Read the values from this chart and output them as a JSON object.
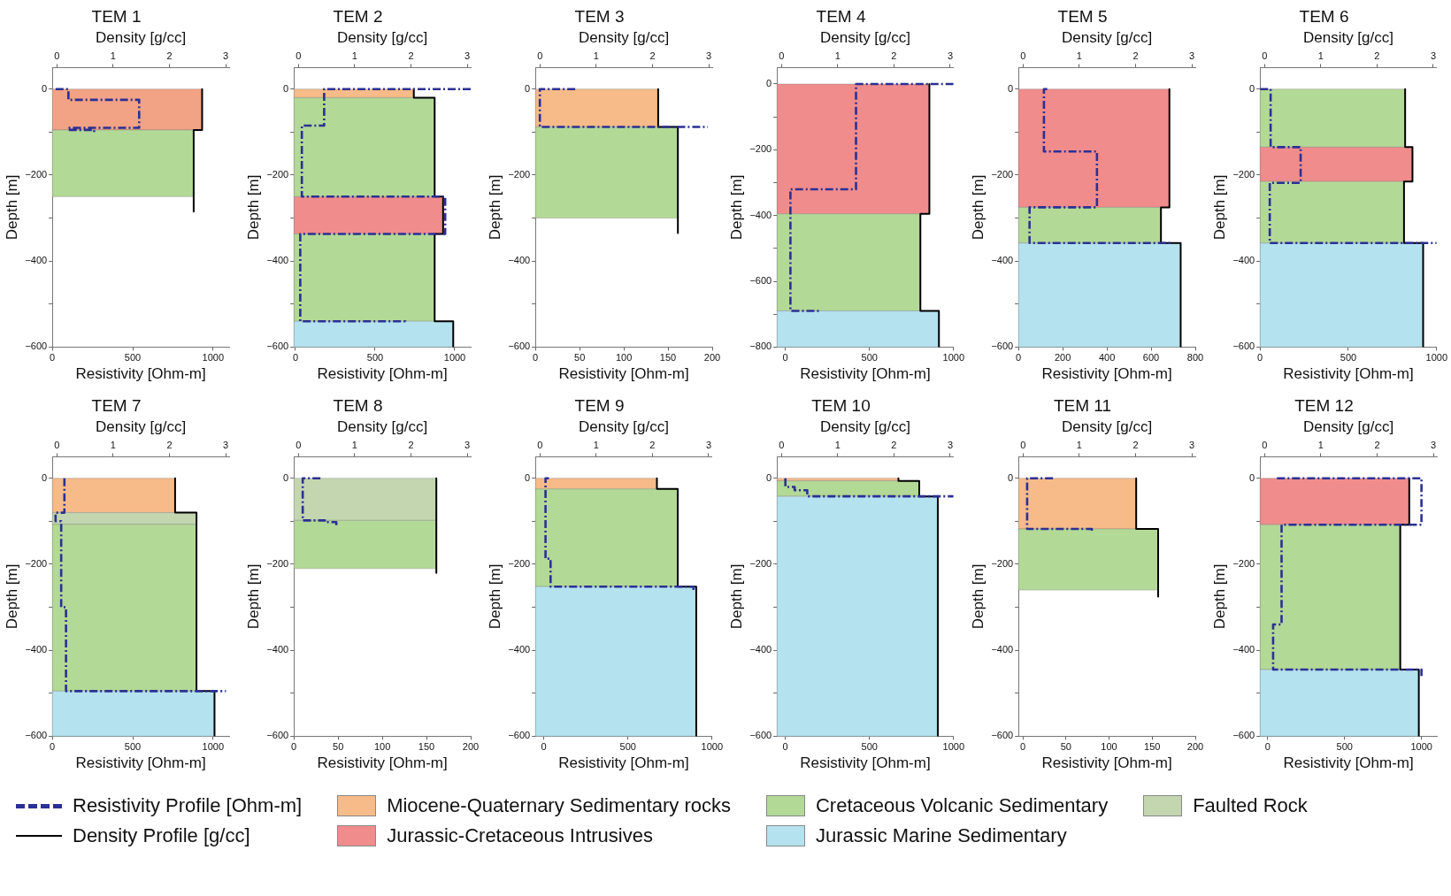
{
  "chart_data": [
    {
      "type": "line",
      "title": "TEM 1",
      "xlabel": "Resistivity [Ohm-m]",
      "x2label": "Density [g/cc]",
      "ylabel": "Depth [m]",
      "xlim": [
        0,
        1100
      ],
      "xticks": [
        0,
        500,
        1000
      ],
      "x2lim": [
        -0.08,
        3.06
      ],
      "x2ticks": [
        0,
        1,
        2,
        3
      ],
      "ylim": [
        -600,
        50
      ],
      "yticks": [
        -600,
        {
          "value": -500,
          "label": null
        },
        -400,
        {
          "value": -300,
          "label": null
        },
        -200,
        {
          "value": -100,
          "label": null
        },
        0
      ],
      "legend": "bottom",
      "series": [
        {
          "name": "Resistivity Profile [Ohm-m]",
          "type": "line",
          "line_style": "dashed",
          "color": "#2b3094",
          "x": [
            20,
            100,
            100,
            540,
            540,
            100,
            100,
            260,
            260
          ],
          "values": [
            0,
            0,
            -25,
            -25,
            -90,
            -90,
            -95,
            -95,
            -105
          ]
        },
        {
          "name": "Density Profile [g/cc]",
          "type": "line",
          "axis": "x2",
          "color": "#000000",
          "x": [
            2.58,
            2.58,
            2.43,
            2.43
          ],
          "values": [
            0,
            -95,
            -95,
            -285
          ]
        }
      ],
      "bands": [
        {
          "axis": "y",
          "from": 0,
          "to": -95,
          "color": "#f2a285"
        },
        {
          "axis": "y",
          "from": -95,
          "to": -250,
          "color": "#b2d996"
        }
      ]
    },
    {
      "type": "line",
      "title": "TEM 2",
      "xlabel": "Resistivity [Ohm-m]",
      "x2label": "Density [g/cc]",
      "ylabel": "Depth [m]",
      "xlim": [
        -10,
        1100
      ],
      "xticks": [
        0,
        500,
        1000
      ],
      "x2lim": [
        -0.08,
        3.06
      ],
      "x2ticks": [
        0,
        1,
        2,
        3
      ],
      "ylim": [
        -600,
        50
      ],
      "yticks": [
        -600,
        {
          "value": -500,
          "label": null
        },
        -400,
        {
          "value": -300,
          "label": null
        },
        -200,
        {
          "value": -100,
          "label": null
        },
        0
      ],
      "legend": "bottom",
      "series": [
        {
          "type": "line",
          "line_style": "dashed",
          "color": "#2b3094",
          "x": [
            1100,
            180,
            180,
            40,
            40,
            940,
            940,
            30,
            30,
            690,
            690
          ],
          "values": [
            0,
            0,
            -85,
            -85,
            -250,
            -250,
            -337,
            -337,
            -540,
            -540,
            -545
          ]
        },
        {
          "type": "line",
          "axis": "x2",
          "color": "#000000",
          "x": [
            2.05,
            2.05,
            2.42,
            2.42,
            2.57,
            2.57,
            2.42,
            2.42,
            2.75,
            2.75
          ],
          "values": [
            0,
            -20,
            -20,
            -250,
            -250,
            -337,
            -337,
            -540,
            -540,
            -600
          ]
        }
      ],
      "bands": [
        {
          "axis": "y",
          "from": 0,
          "to": -20,
          "color": "#f6bb88",
          "label": "Miocene-Quaternary Sedimentary rocks"
        },
        {
          "axis": "y",
          "from": -250,
          "to": -337,
          "color": "#f08c8c",
          "label": "Jurassic-Cretaceous Intrusives"
        },
        {
          "axis": "y",
          "from": -20,
          "to": -250,
          "color": "#b2d996",
          "label": "Cretaceous Volcanic Sedimentary"
        },
        {
          "axis": "y",
          "from": -337,
          "to": -540,
          "color": "#b2d996"
        },
        {
          "axis": "y",
          "from": -540,
          "to": -600,
          "color": "#b4e2ee",
          "label": "Jurassic Marine Sedimentary"
        }
      ]
    },
    {
      "type": "line",
      "title": "TEM 3",
      "xlabel": "Resistivity [Ohm-m]",
      "x2label": "Density [g/cc]",
      "ylabel": "Depth [m]",
      "xlim": [
        0,
        200
      ],
      "xticks": [
        0,
        50,
        100,
        150,
        200
      ],
      "x2lim": [
        -0.08,
        3.06
      ],
      "x2ticks": [
        0,
        1,
        2,
        3
      ],
      "ylim": [
        -600,
        50
      ],
      "yticks": [
        -600,
        {
          "value": -500,
          "label": null
        },
        -400,
        {
          "value": -300,
          "label": null
        },
        -200,
        {
          "value": -100,
          "label": null
        },
        0
      ],
      "series": [
        {
          "type": "line",
          "line_style": "dashed",
          "color": "#2b3094",
          "x": [
            45,
            5,
            5,
            195
          ],
          "values": [
            0,
            0,
            -88,
            -88
          ]
        },
        {
          "type": "line",
          "axis": "x2",
          "color": "#000000",
          "x": [
            2.1,
            2.1,
            2.45,
            2.45
          ],
          "values": [
            0,
            -88,
            -88,
            -335
          ]
        }
      ],
      "bands": [
        {
          "axis": "y",
          "from": 0,
          "to": -88,
          "color": "#f6bb88"
        },
        {
          "axis": "y",
          "from": -88,
          "to": -300,
          "color": "#b2d996"
        }
      ]
    },
    {
      "type": "line",
      "title": "TEM 4",
      "xlabel": "Resistivity [Ohm-m]",
      "x2label": "Density [g/cc]",
      "ylabel": "Depth [m]",
      "xlim": [
        -50,
        1000
      ],
      "xticks": [
        0,
        500,
        1000
      ],
      "x2lim": [
        -0.08,
        3.06
      ],
      "x2ticks": [
        0,
        1,
        2,
        3
      ],
      "ylim": [
        -800,
        50
      ],
      "yticks": [
        -800,
        {
          "value": -700,
          "label": null
        },
        -600,
        {
          "value": -500,
          "label": null
        },
        -400,
        {
          "value": -300,
          "label": null
        },
        -200,
        {
          "value": -100,
          "label": null
        },
        0
      ],
      "series": [
        {
          "type": "line",
          "line_style": "dashed",
          "color": "#2b3094",
          "x": [
            1000,
            420,
            420,
            30,
            30,
            200
          ],
          "values": [
            0,
            0,
            -320,
            -320,
            -690,
            -690
          ]
        },
        {
          "type": "line",
          "axis": "x2",
          "color": "#000000",
          "x": [
            2.63,
            2.63,
            2.47,
            2.47,
            2.8,
            2.8
          ],
          "values": [
            0,
            -395,
            -395,
            -690,
            -690,
            -800
          ]
        }
      ],
      "bands": [
        {
          "axis": "y",
          "from": 0,
          "to": -395,
          "color": "#f08c8c"
        },
        {
          "axis": "y",
          "from": -395,
          "to": -690,
          "color": "#b2d996"
        },
        {
          "axis": "y",
          "from": -690,
          "to": -800,
          "color": "#b4e2ee"
        }
      ]
    },
    {
      "type": "line",
      "title": "TEM 5",
      "xlabel": "Resistivity [Ohm-m]",
      "x2label": "Density [g/cc]",
      "ylabel": "Depth [m]",
      "xlim": [
        0,
        800
      ],
      "xticks": [
        0,
        200,
        400,
        600,
        800
      ],
      "x2lim": [
        -0.08,
        3.06
      ],
      "x2ticks": [
        0,
        1,
        2,
        3
      ],
      "ylim": [
        -600,
        50
      ],
      "yticks": [
        -600,
        {
          "value": -500,
          "label": null
        },
        -400,
        {
          "value": -300,
          "label": null
        },
        -200,
        {
          "value": -100,
          "label": null
        },
        0
      ],
      "series": [
        {
          "type": "line",
          "line_style": "dashed",
          "color": "#2b3094",
          "x": [
            130,
            115,
            115,
            355,
            355,
            50,
            50,
            690
          ],
          "values": [
            0,
            0,
            -145,
            -145,
            -275,
            -275,
            -358,
            -358
          ]
        },
        {
          "type": "line",
          "axis": "x2",
          "color": "#000000",
          "x": [
            2.6,
            2.6,
            2.45,
            2.45,
            2.8,
            2.8
          ],
          "values": [
            0,
            -275,
            -275,
            -358,
            -358,
            -600
          ]
        }
      ],
      "bands": [
        {
          "axis": "y",
          "from": 0,
          "to": -275,
          "color": "#f08c8c"
        },
        {
          "axis": "y",
          "from": -275,
          "to": -358,
          "color": "#b2d996"
        },
        {
          "axis": "y",
          "from": -358,
          "to": -600,
          "color": "#b4e2ee"
        }
      ]
    },
    {
      "type": "line",
      "title": "TEM 6",
      "xlabel": "Resistivity [Ohm-m]",
      "x2label": "Density [g/cc]",
      "ylabel": "Depth [m]",
      "xlim": [
        0,
        1000
      ],
      "xticks": [
        0,
        500,
        1000
      ],
      "x2lim": [
        -0.08,
        3.06
      ],
      "x2ticks": [
        0,
        1,
        2,
        3
      ],
      "ylim": [
        -600,
        50
      ],
      "yticks": [
        -600,
        {
          "value": -500,
          "label": null
        },
        -400,
        {
          "value": -300,
          "label": null
        },
        -200,
        {
          "value": -100,
          "label": null
        },
        0
      ],
      "series": [
        {
          "type": "line",
          "line_style": "dashed",
          "color": "#2b3094",
          "x": [
            0,
            60,
            60,
            230,
            230,
            55,
            55,
            1000
          ],
          "values": [
            0,
            0,
            -135,
            -135,
            -218,
            -218,
            -358,
            -358
          ]
        },
        {
          "type": "line",
          "axis": "x2",
          "color": "#000000",
          "x": [
            2.5,
            2.5,
            2.63,
            2.63,
            2.48,
            2.48,
            2.82,
            2.82
          ],
          "values": [
            0,
            -135,
            -135,
            -215,
            -215,
            -358,
            -358,
            -600
          ]
        }
      ],
      "bands": [
        {
          "axis": "y",
          "from": 0,
          "to": -135,
          "color": "#b2d996"
        },
        {
          "axis": "y",
          "from": -135,
          "to": -215,
          "color": "#f08c8c"
        },
        {
          "axis": "y",
          "from": -215,
          "to": -358,
          "color": "#b2d996"
        },
        {
          "axis": "y",
          "from": -358,
          "to": -600,
          "color": "#b4e2ee"
        }
      ]
    },
    {
      "type": "line",
      "title": "TEM 7",
      "xlabel": "Resistivity [Ohm-m]",
      "x2label": "Density [g/cc]",
      "ylabel": "Depth [m]",
      "xlim": [
        0,
        1100
      ],
      "xticks": [
        0,
        500,
        1000
      ],
      "x2lim": [
        -0.08,
        3.06
      ],
      "x2ticks": [
        0,
        1,
        2,
        3
      ],
      "ylim": [
        -600,
        50
      ],
      "yticks": [
        -600,
        {
          "value": -500,
          "label": null
        },
        -400,
        {
          "value": -300,
          "label": null
        },
        -200,
        {
          "value": -100,
          "label": null
        },
        0
      ],
      "legend": "bottom",
      "series": [
        {
          "type": "line",
          "line_style": "dashed",
          "color": "#2b3094",
          "x": [
            75,
            75,
            20,
            20,
            55,
            55,
            85,
            85,
            1080
          ],
          "values": [
            0,
            -80,
            -80,
            -100,
            -100,
            -300,
            -300,
            -495,
            -495
          ]
        },
        {
          "type": "line",
          "axis": "x2",
          "color": "#000000",
          "x": [
            2.1,
            2.1,
            2.48,
            2.48,
            2.8,
            2.8
          ],
          "values": [
            0,
            -80,
            -80,
            -495,
            -495,
            -600
          ]
        }
      ],
      "bands": [
        {
          "axis": "y",
          "from": 0,
          "to": -80,
          "color": "#f6bb88"
        },
        {
          "axis": "y",
          "from": -80,
          "to": -107,
          "color": "#c3d6b0",
          "label": "Faulted Rock"
        },
        {
          "axis": "y",
          "from": -107,
          "to": -495,
          "color": "#b2d996"
        },
        {
          "axis": "y",
          "from": -495,
          "to": -600,
          "color": "#b4e2ee"
        }
      ]
    },
    {
      "type": "line",
      "title": "TEM 8",
      "xlabel": "Resistivity [Ohm-m]",
      "x2label": "Density [g/cc]",
      "ylabel": "Depth [m]",
      "xlim": [
        0,
        200
      ],
      "xticks": [
        0,
        50,
        100,
        150,
        200
      ],
      "x2lim": [
        -0.08,
        3.06
      ],
      "x2ticks": [
        0,
        1,
        2,
        3
      ],
      "ylim": [
        -600,
        50
      ],
      "yticks": [
        -600,
        {
          "value": -500,
          "label": null
        },
        -400,
        {
          "value": -300,
          "label": null
        },
        -200,
        {
          "value": -100,
          "label": null
        },
        0
      ],
      "series": [
        {
          "type": "line",
          "line_style": "dashed",
          "color": "#2b3094",
          "x": [
            30,
            10,
            10,
            35,
            35,
            48,
            48
          ],
          "values": [
            0,
            0,
            -98,
            -98,
            -102,
            -102,
            -110
          ]
        },
        {
          "type": "line",
          "axis": "x2",
          "color": "#000000",
          "x": [
            2.45,
            2.45
          ],
          "values": [
            0,
            -220
          ]
        }
      ],
      "bands": [
        {
          "axis": "y",
          "from": 0,
          "to": -98,
          "color": "#c3d6b0"
        },
        {
          "axis": "y",
          "from": -98,
          "to": -210,
          "color": "#b2d996"
        }
      ]
    },
    {
      "type": "line",
      "title": "TEM 9",
      "xlabel": "Resistivity [Ohm-m]",
      "x2label": "Density [g/cc]",
      "ylabel": "Depth [m]",
      "xlim": [
        -50,
        1000
      ],
      "xticks": [
        0,
        500,
        1000
      ],
      "x2lim": [
        -0.08,
        3.06
      ],
      "x2ticks": [
        0,
        1,
        2,
        3
      ],
      "ylim": [
        -600,
        50
      ],
      "yticks": [
        -600,
        {
          "value": -500,
          "label": null
        },
        -400,
        {
          "value": -300,
          "label": null
        },
        -200,
        {
          "value": -100,
          "label": null
        },
        0
      ],
      "series": [
        {
          "type": "line",
          "line_style": "dashed",
          "color": "#2b3094",
          "x": [
            30,
            10,
            10,
            40,
            40,
            890,
            890
          ],
          "values": [
            0,
            0,
            -187,
            -187,
            -252,
            -252,
            -260
          ]
        },
        {
          "type": "line",
          "axis": "x2",
          "color": "#000000",
          "x": [
            2.08,
            2.08,
            2.45,
            2.45,
            2.78,
            2.78
          ],
          "values": [
            0,
            -25,
            -25,
            -252,
            -252,
            -600
          ]
        }
      ],
      "bands": [
        {
          "axis": "y",
          "from": 0,
          "to": -25,
          "color": "#f6bb88"
        },
        {
          "axis": "y",
          "from": -25,
          "to": -252,
          "color": "#b2d996"
        },
        {
          "axis": "y",
          "from": -252,
          "to": -600,
          "color": "#b4e2ee"
        }
      ]
    },
    {
      "type": "line",
      "title": "TEM 10",
      "xlabel": "Resistivity [Ohm-m]",
      "x2label": "Density [g/cc]",
      "ylabel": "Depth [m]",
      "xlim": [
        -50,
        1000
      ],
      "xticks": [
        0,
        500,
        1000
      ],
      "x2lim": [
        -0.08,
        3.06
      ],
      "x2ticks": [
        0,
        1,
        2,
        3
      ],
      "ylim": [
        -600,
        50
      ],
      "yticks": [
        -600,
        {
          "value": -500,
          "label": null
        },
        -400,
        {
          "value": -300,
          "label": null
        },
        -200,
        {
          "value": -100,
          "label": null
        },
        0
      ],
      "series": [
        {
          "type": "line",
          "line_style": "dashed",
          "color": "#2b3094",
          "x": [
            0,
            0,
            55,
            55,
            130,
            130,
            1000
          ],
          "values": [
            0,
            -20,
            -20,
            -28,
            -28,
            -42,
            -42
          ]
        },
        {
          "type": "line",
          "axis": "x2",
          "color": "#000000",
          "x": [
            2.08,
            2.08,
            2.45,
            2.45,
            2.78,
            2.78
          ],
          "values": [
            0,
            -6,
            -6,
            -42,
            -42,
            -600
          ]
        }
      ],
      "bands": [
        {
          "axis": "y",
          "from": 0,
          "to": -6,
          "color": "#f6bb88"
        },
        {
          "axis": "y",
          "from": -6,
          "to": -42,
          "color": "#b2d996"
        },
        {
          "axis": "y",
          "from": -42,
          "to": -600,
          "color": "#b4e2ee"
        }
      ]
    },
    {
      "type": "line",
      "title": "TEM 11",
      "xlabel": "Resistivity [Ohm-m]",
      "x2label": "Density [g/cc]",
      "ylabel": "Depth [m]",
      "xlim": [
        -5,
        200
      ],
      "xticks": [
        0,
        50,
        100,
        150,
        200
      ],
      "x2lim": [
        -0.08,
        3.06
      ],
      "x2ticks": [
        0,
        1,
        2,
        3
      ],
      "ylim": [
        -600,
        50
      ],
      "yticks": [
        -600,
        {
          "value": -500,
          "label": null
        },
        -400,
        {
          "value": -300,
          "label": null
        },
        -200,
        {
          "value": -100,
          "label": null
        },
        0
      ],
      "series": [
        {
          "type": "line",
          "line_style": "dashed",
          "color": "#2b3094",
          "x": [
            35,
            5,
            5,
            80,
            80
          ],
          "values": [
            0,
            0,
            -118,
            -118,
            -122
          ]
        },
        {
          "type": "line",
          "axis": "x2",
          "color": "#000000",
          "x": [
            2.01,
            2.01,
            2.4,
            2.4
          ],
          "values": [
            0,
            -118,
            -118,
            -275
          ]
        }
      ],
      "bands": [
        {
          "axis": "y",
          "from": 0,
          "to": -118,
          "color": "#f6bb88"
        },
        {
          "axis": "y",
          "from": -118,
          "to": -260,
          "color": "#b2d996"
        }
      ]
    },
    {
      "type": "line",
      "title": "TEM 12",
      "xlabel": "Resistivity [Ohm-m]",
      "x2label": "Density [g/cc]",
      "ylabel": "Depth [m]",
      "xlim": [
        -50,
        1100
      ],
      "xticks": [
        0,
        500,
        1000
      ],
      "x2lim": [
        -0.08,
        3.06
      ],
      "x2ticks": [
        0,
        1,
        2,
        3
      ],
      "ylim": [
        -600,
        50
      ],
      "yticks": [
        -600,
        {
          "value": -500,
          "label": null
        },
        -400,
        {
          "value": -300,
          "label": null
        },
        -200,
        {
          "value": -100,
          "label": null
        },
        0
      ],
      "series": [
        {
          "type": "line",
          "line_style": "dashed",
          "color": "#2b3094",
          "x": [
            60,
            1000,
            1000,
            90,
            90,
            35,
            35,
            1000,
            1000
          ],
          "values": [
            0,
            0,
            -108,
            -108,
            -340,
            -340,
            -445,
            -445,
            -460
          ]
        },
        {
          "type": "line",
          "axis": "x2",
          "color": "#000000",
          "x": [
            2.57,
            2.57,
            2.41,
            2.41,
            2.74,
            2.74
          ],
          "values": [
            0,
            -108,
            -108,
            -445,
            -445,
            -600
          ]
        }
      ],
      "bands": [
        {
          "axis": "y",
          "from": 0,
          "to": -108,
          "color": "#f08c8c"
        },
        {
          "axis": "y",
          "from": -108,
          "to": -445,
          "color": "#b2d996"
        },
        {
          "axis": "y",
          "from": -445,
          "to": -600,
          "color": "#b4e2ee"
        }
      ]
    }
  ]
}
